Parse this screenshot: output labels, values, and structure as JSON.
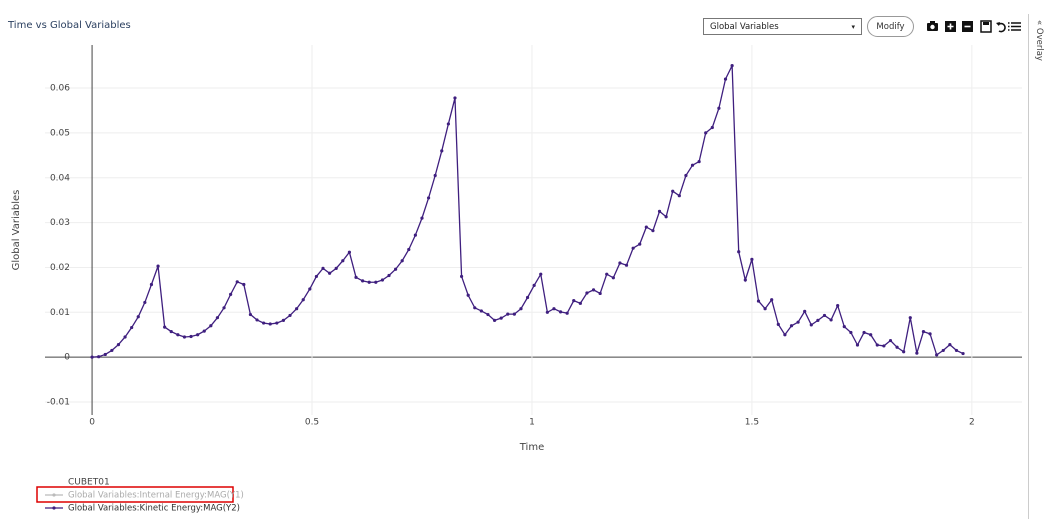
{
  "title": "Time vs Global Variables",
  "toolbar": {
    "dropdown": "Global Variables",
    "button": "Modify"
  },
  "side_panel": "Overlay",
  "chart_data": {
    "type": "line",
    "xlabel": "Time",
    "ylabel": "Global Variables",
    "legend_title": "CUBET01",
    "xlim": [
      -0.107,
      2.114
    ],
    "ylim": [
      -0.0129,
      0.0696
    ],
    "xticks": [
      0,
      0.5,
      1,
      1.5,
      2
    ],
    "yticks": [
      -0.01,
      0,
      0.01,
      0.02,
      0.03,
      0.04,
      0.05,
      0.06
    ],
    "grid": true,
    "x": [
      0,
      0.015,
      0.03,
      0.045,
      0.06,
      0.075,
      0.09,
      0.105,
      0.12,
      0.135,
      0.15,
      0.165,
      0.18,
      0.195,
      0.21,
      0.225,
      0.24,
      0.255,
      0.27,
      0.285,
      0.3,
      0.315,
      0.33,
      0.345,
      0.36,
      0.375,
      0.39,
      0.405,
      0.42,
      0.435,
      0.45,
      0.465,
      0.48,
      0.495,
      0.51,
      0.525,
      0.54,
      0.555,
      0.57,
      0.585,
      0.6,
      0.615,
      0.63,
      0.645,
      0.66,
      0.675,
      0.69,
      0.705,
      0.72,
      0.735,
      0.75,
      0.765,
      0.78,
      0.795,
      0.81,
      0.825,
      0.84,
      0.855,
      0.87,
      0.885,
      0.9,
      0.915,
      0.93,
      0.945,
      0.96,
      0.975,
      0.99,
      1.005,
      1.02,
      1.035,
      1.05,
      1.065,
      1.08,
      1.095,
      1.11,
      1.125,
      1.14,
      1.155,
      1.17,
      1.185,
      1.2,
      1.215,
      1.23,
      1.245,
      1.26,
      1.275,
      1.29,
      1.305,
      1.32,
      1.335,
      1.35,
      1.365,
      1.38,
      1.395,
      1.41,
      1.425,
      1.44,
      1.455,
      1.47,
      1.485,
      1.5,
      1.515,
      1.53,
      1.545,
      1.56,
      1.575,
      1.59,
      1.605,
      1.62,
      1.635,
      1.65,
      1.665,
      1.68,
      1.695,
      1.71,
      1.725,
      1.74,
      1.755,
      1.77,
      1.785,
      1.8,
      1.815,
      1.83,
      1.845,
      1.86,
      1.875,
      1.89,
      1.905,
      1.92,
      1.935,
      1.95,
      1.965,
      1.98
    ],
    "series": [
      {
        "name": "Global Variables:Internal Energy:MAG(Y1)",
        "color": "#bbbbbb",
        "visible": false
      },
      {
        "name": "Global Variables:Kinetic Energy:MAG(Y2)",
        "color": "#3f1f7f",
        "visible": true,
        "values": [
          0,
          0.0001,
          0.0006,
          0.0015,
          0.0028,
          0.0045,
          0.0066,
          0.009,
          0.0122,
          0.0162,
          0.0203,
          0.0067,
          0.0057,
          0.005,
          0.0045,
          0.0046,
          0.005,
          0.0058,
          0.007,
          0.0088,
          0.011,
          0.014,
          0.0168,
          0.0162,
          0.0095,
          0.0083,
          0.0076,
          0.0074,
          0.0076,
          0.0082,
          0.0093,
          0.0108,
          0.0128,
          0.0152,
          0.018,
          0.0198,
          0.0187,
          0.0198,
          0.0215,
          0.0234,
          0.0178,
          0.017,
          0.0167,
          0.0167,
          0.0172,
          0.0182,
          0.0196,
          0.0215,
          0.024,
          0.0272,
          0.031,
          0.0355,
          0.0405,
          0.046,
          0.052,
          0.0578,
          0.018,
          0.0138,
          0.011,
          0.0103,
          0.0095,
          0.0082,
          0.0087,
          0.0096,
          0.0096,
          0.0108,
          0.0133,
          0.016,
          0.0185,
          0.01,
          0.0108,
          0.0101,
          0.0098,
          0.0126,
          0.012,
          0.0143,
          0.015,
          0.0142,
          0.0185,
          0.0177,
          0.021,
          0.0205,
          0.0243,
          0.0252,
          0.029,
          0.0282,
          0.0325,
          0.0313,
          0.037,
          0.036,
          0.0405,
          0.0428,
          0.0436,
          0.05,
          0.0512,
          0.0555,
          0.062,
          0.065,
          0.0235,
          0.0172,
          0.0218,
          0.0125,
          0.0108,
          0.0128,
          0.0073,
          0.005,
          0.007,
          0.0078,
          0.0102,
          0.0072,
          0.0082,
          0.0093,
          0.0083,
          0.0115,
          0.0068,
          0.0055,
          0.0027,
          0.0055,
          0.005,
          0.0027,
          0.0025,
          0.0037,
          0.0022,
          0.0012,
          0.0088,
          0.0009,
          0.0057,
          0.0052,
          0.0005,
          0.0015,
          0.0028,
          0.0015,
          0.0008
        ]
      }
    ]
  }
}
